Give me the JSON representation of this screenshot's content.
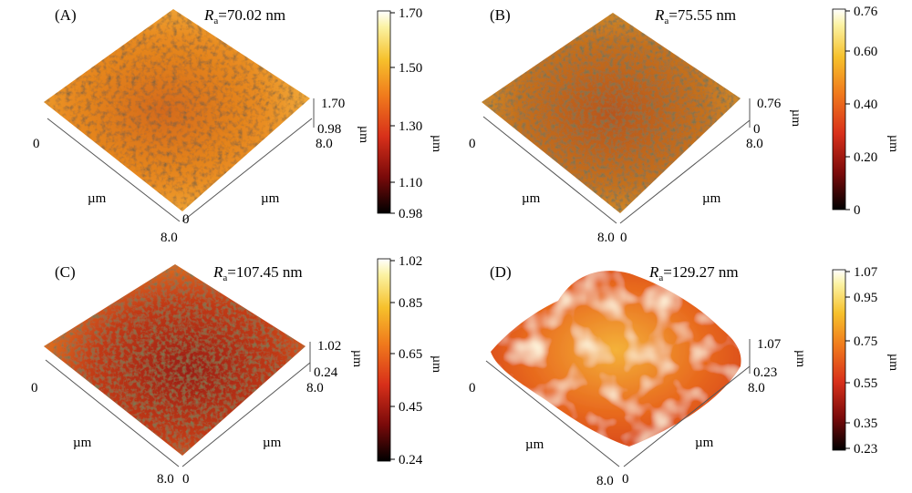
{
  "colorbar_colors": [
    "#000000",
    "#7a0a0a",
    "#d8301a",
    "#f07a1c",
    "#f6c12c",
    "#fbf2a2",
    "#ffffff"
  ],
  "panels": [
    {
      "label": "(A)",
      "ra_symbol": "R",
      "ra_sub": "a",
      "ra_value": "=70.02 nm",
      "z_max": "1.70",
      "z_min": "0.98",
      "xy_origin": "0",
      "xy_max": "8.0",
      "xy_unit": "µm",
      "z_unit": "µm",
      "colorbar_ticks": [
        "1.70",
        "1.50",
        "1.30",
        "1.10",
        "0.98"
      ],
      "colorbar_unit": "µm",
      "surface": "rough-orange"
    },
    {
      "label": "(B)",
      "ra_symbol": "R",
      "ra_sub": "a",
      "ra_value": "=75.55 nm",
      "z_max": "0.76",
      "z_min": "0",
      "xy_origin": "0",
      "xy_max": "8.0",
      "xy_unit": "µm",
      "z_unit": "µm",
      "colorbar_ticks": [
        "0.76",
        "0.60",
        "0.40",
        "0.20",
        "0"
      ],
      "colorbar_unit": "µm",
      "surface": "rough-dark"
    },
    {
      "label": "(C)",
      "ra_symbol": "R",
      "ra_sub": "a",
      "ra_value": "=107.45 nm",
      "z_max": "1.02",
      "z_min": "0.24",
      "xy_origin": "0",
      "xy_max": "8.0",
      "xy_unit": "µm",
      "z_unit": "µm",
      "colorbar_ticks": [
        "1.02",
        "0.85",
        "0.65",
        "0.45",
        "0.24"
      ],
      "colorbar_unit": "µm",
      "surface": "rough-red"
    },
    {
      "label": "(D)",
      "ra_symbol": "R",
      "ra_sub": "a",
      "ra_value": "=129.27 nm",
      "z_max": "1.07",
      "z_min": "0.23",
      "xy_origin": "0",
      "xy_max": "8.0",
      "xy_unit": "µm",
      "z_unit": "µm",
      "colorbar_ticks": [
        "1.07",
        "0.95",
        "0.75",
        "0.55",
        "0.35",
        "0.23"
      ],
      "colorbar_unit": "µm",
      "surface": "smooth-bumps"
    }
  ]
}
